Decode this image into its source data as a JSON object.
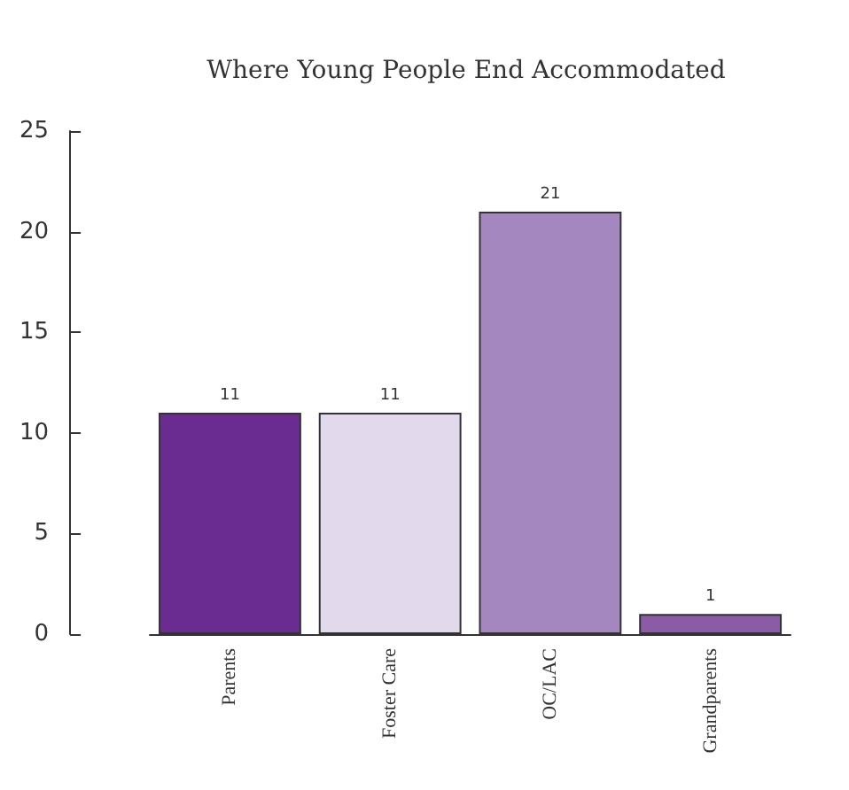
{
  "chart_data": {
    "type": "bar",
    "title": "Where Young People End Accommodated",
    "categories": [
      "Parents",
      "Foster Care",
      "OC/LAC",
      "Grandparents"
    ],
    "values": [
      11,
      11,
      21,
      1
    ],
    "colors": [
      "#6a2c91",
      "#e2d9ec",
      "#a487bf",
      "#8a5ca6"
    ],
    "ylim": [
      0,
      25
    ],
    "yticks": [
      0,
      5,
      10,
      15,
      20,
      25
    ],
    "grid": false,
    "data_labels": true
  }
}
